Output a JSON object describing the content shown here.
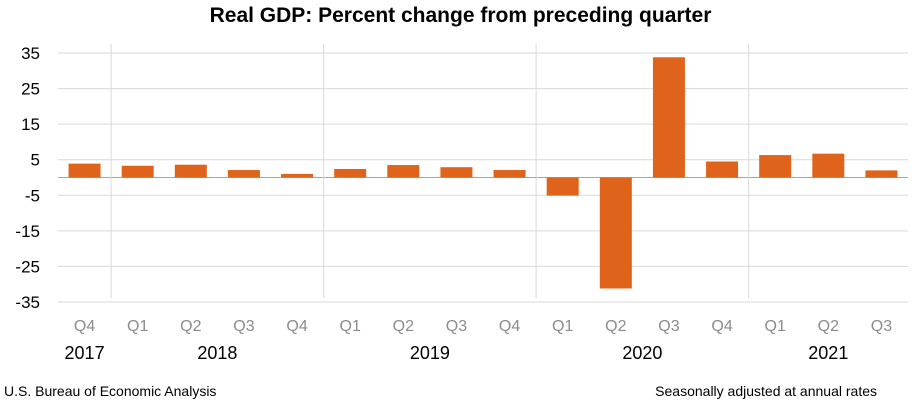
{
  "chart_data": {
    "type": "bar",
    "title": "Real GDP:  Percent change from preceding quarter",
    "categories": [
      "Q4",
      "Q1",
      "Q2",
      "Q3",
      "Q4",
      "Q1",
      "Q2",
      "Q3",
      "Q4",
      "Q1",
      "Q2",
      "Q3",
      "Q4",
      "Q1",
      "Q2",
      "Q3"
    ],
    "years": [
      {
        "label": "2017",
        "span": [
          0,
          0
        ]
      },
      {
        "label": "2018",
        "span": [
          1,
          4
        ]
      },
      {
        "label": "2019",
        "span": [
          5,
          8
        ]
      },
      {
        "label": "2020",
        "span": [
          9,
          12
        ]
      },
      {
        "label": "2021",
        "span": [
          13,
          15
        ]
      }
    ],
    "series": [
      {
        "values": [
          3.9,
          3.3,
          3.6,
          2.1,
          1.0,
          2.4,
          3.5,
          2.9,
          2.1,
          -5.1,
          -31.2,
          33.8,
          4.5,
          6.3,
          6.7,
          2.0
        ]
      }
    ],
    "yticks": [
      35,
      25,
      15,
      5,
      -5,
      -15,
      -25,
      -35
    ],
    "ylim": [
      -35,
      35
    ],
    "grid": true,
    "bar_color": "#e0631c",
    "grid_color": "#d9d9d9",
    "tick_label_color": "#8c8c8c"
  },
  "footer": {
    "source": "U.S. Bureau of Economic Analysis",
    "note": "Seasonally adjusted at annual rates"
  }
}
